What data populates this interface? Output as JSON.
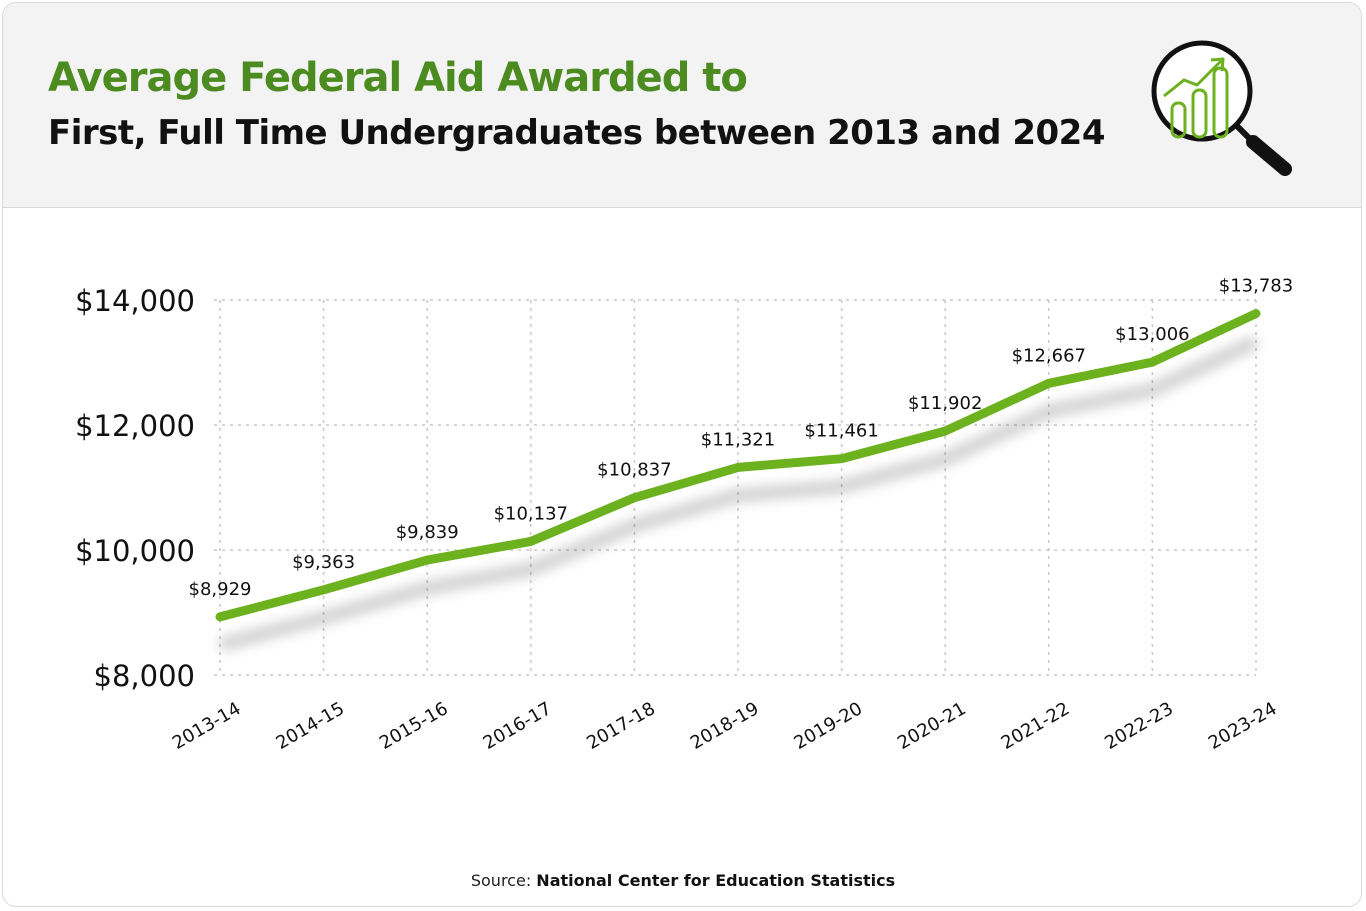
{
  "header": {
    "title": "Average Federal Aid Awarded to",
    "subtitle": "First, Full Time Undergraduates between 2013 and 2024",
    "icon": "magnifier-bar-chart-icon"
  },
  "source": {
    "label": "Source:",
    "name": "National Center for Education Statistics"
  },
  "colors": {
    "accent": "#6bb21e",
    "title": "#4b8b1f",
    "grid": "#c8c8c8",
    "header_bg": "#f3f3f3"
  },
  "chart_data": {
    "type": "line",
    "categories": [
      "2013-14",
      "2014-15",
      "2015-16",
      "2016-17",
      "2017-18",
      "2018-19",
      "2019-20",
      "2020-21",
      "2021-22",
      "2022-23",
      "2023-24"
    ],
    "values": [
      8929,
      9363,
      9839,
      10137,
      10837,
      11321,
      11461,
      11902,
      12667,
      13006,
      13783
    ],
    "data_labels": [
      "$8,929",
      "$9,363",
      "$9,839",
      "$10,137",
      "$10,837",
      "$11,321",
      "$11,461",
      "$11,902",
      "$12,667",
      "$13,006",
      "$13,783"
    ],
    "yticks": [
      8000,
      10000,
      12000,
      14000
    ],
    "ytick_labels": [
      "$8,000",
      "$10,000",
      "$12,000",
      "$14,000"
    ],
    "ylim": [
      8000,
      14000
    ],
    "grid": true,
    "legend": "none"
  }
}
